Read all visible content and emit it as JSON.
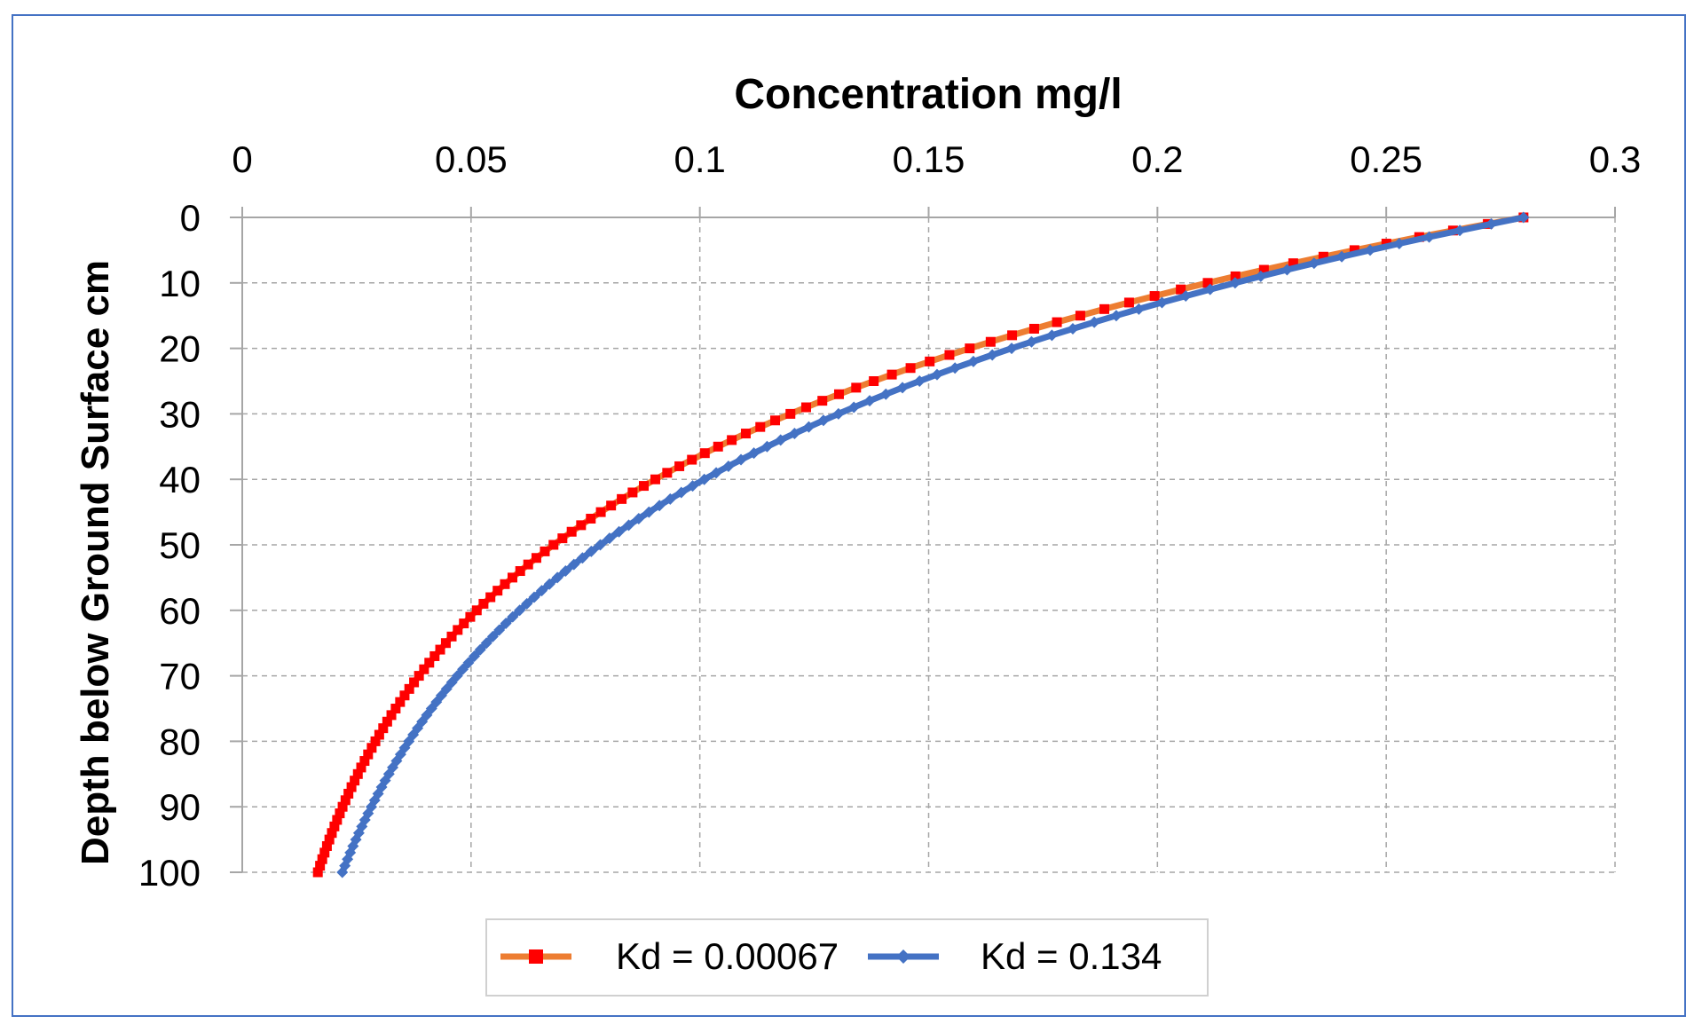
{
  "chart_data": {
    "type": "line",
    "title": "Concentration mg/l",
    "xlabel": "Concentration mg/l",
    "ylabel": "Depth below Ground Surface cm",
    "xlim": [
      0,
      0.3
    ],
    "ylim": [
      0,
      100
    ],
    "y_reversed": true,
    "x_axis_position": "top",
    "grid": true,
    "x_ticks": [
      "0",
      "0.05",
      "0.1",
      "0.15",
      "0.2",
      "0.25",
      "0.3"
    ],
    "y_ticks": [
      "0",
      "10",
      "20",
      "30",
      "40",
      "50",
      "60",
      "70",
      "80",
      "90",
      "100"
    ],
    "legend_position": "bottom",
    "series": [
      {
        "name": "Kd = 0.00067",
        "line_color": "#ED7D31",
        "marker_color": "#FF0000",
        "marker": "square",
        "c0": 0.28,
        "decay_per_cm": 0.0283,
        "depth_step": 1,
        "depth_range": [
          0,
          100
        ]
      },
      {
        "name": "Kd = 0.134",
        "line_color": "#4472C4",
        "marker_color": "#4472C4",
        "marker": "diamond",
        "c0": 0.28,
        "decay_per_cm": 0.0255,
        "depth_step": 1,
        "depth_range": [
          0,
          100
        ]
      }
    ]
  }
}
